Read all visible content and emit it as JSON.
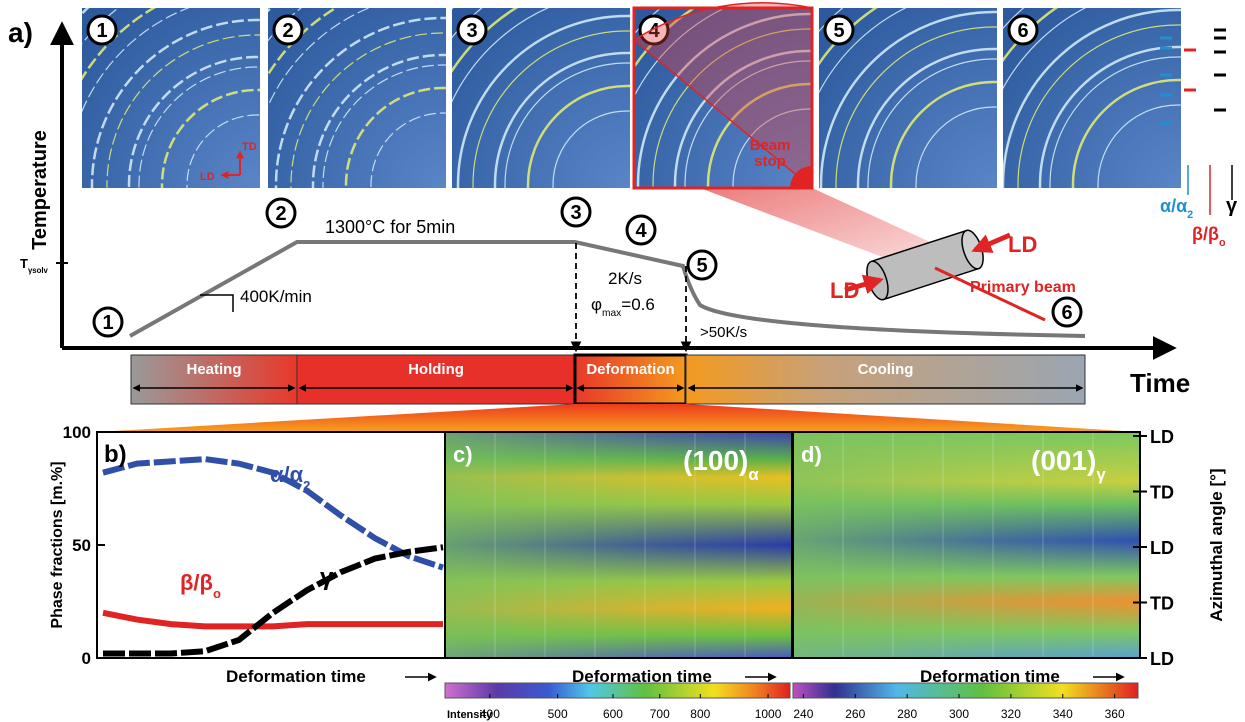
{
  "panel_a": {
    "label": "a)",
    "y_axis": "Temperature",
    "x_axis": "Time",
    "images": [
      "1",
      "2",
      "3",
      "4",
      "5",
      "6"
    ],
    "stage_markers": [
      "1",
      "2",
      "3",
      "4",
      "5",
      "6"
    ],
    "hold": "1300°C for 5min",
    "heat_rate": "400K/min",
    "def_rate": "2K/s",
    "strain": {
      "main": "φ",
      "sub": "max",
      "rest": "=0.6"
    },
    "cool_rate": ">50K/s",
    "t_solv": {
      "main": "T",
      "sub": "γsolv"
    },
    "phases": [
      {
        "main": "α/α",
        "sub": "2"
      },
      {
        "main": "β/β",
        "sub": "o"
      },
      {
        "main": "γ"
      }
    ],
    "directions": {
      "td": "TD",
      "ld": "LD"
    },
    "sample": {
      "ld_left": "LD",
      "ld_right": "LD",
      "beam": "Primary beam",
      "beam_stop": [
        "Beam",
        "stop"
      ]
    },
    "stages": [
      "Heating",
      "Holding",
      "Deformation",
      "Cooling"
    ]
  },
  "chart_data": {
    "type": "line",
    "label": "b)",
    "y_label": "Phase fractions [m.%]",
    "x_label": "Deformation time",
    "categories": [
      null,
      null,
      null,
      null,
      null,
      null,
      null,
      null,
      null,
      null,
      null
    ],
    "ylim": [
      0,
      100
    ],
    "yticks": [
      0,
      50,
      100
    ],
    "series": [
      {
        "name": "α/α",
        "sub": "2",
        "color": "#2f4fa8",
        "values": [
          82,
          86,
          87,
          88,
          86,
          82,
          74,
          63,
          53,
          45,
          40
        ]
      },
      {
        "name": "β/β",
        "sub": "o",
        "color": "#e02424",
        "values": [
          20,
          17,
          15,
          14,
          14,
          14,
          15,
          15,
          15,
          15,
          15
        ]
      },
      {
        "name": "γ",
        "sub": null,
        "color": "#000000",
        "values": [
          2,
          2,
          2,
          3,
          8,
          20,
          30,
          38,
          44,
          47,
          49
        ]
      }
    ]
  },
  "panel_c": {
    "label": "c)",
    "plane": {
      "main": "(100)",
      "sub": "α"
    },
    "x_label": "Deformation time",
    "colorbar": {
      "label": "Intensity",
      "scale": "log",
      "lim": [
        345,
        1075
      ],
      "ticks": [
        400,
        500,
        600,
        700,
        800,
        1000
      ]
    }
  },
  "panel_d": {
    "label": "d)",
    "plane": {
      "main": "(001)",
      "sub": "γ"
    },
    "x_label": "Deformation time",
    "colorbar": {
      "scale": "linear",
      "lim": [
        236,
        369
      ],
      "ticks": [
        240,
        260,
        280,
        300,
        320,
        340,
        360
      ]
    }
  },
  "azimuth": {
    "label": "Azimuthal angle [°]",
    "ticks": [
      "LD",
      "TD",
      "LD",
      "TD",
      "LD"
    ]
  }
}
